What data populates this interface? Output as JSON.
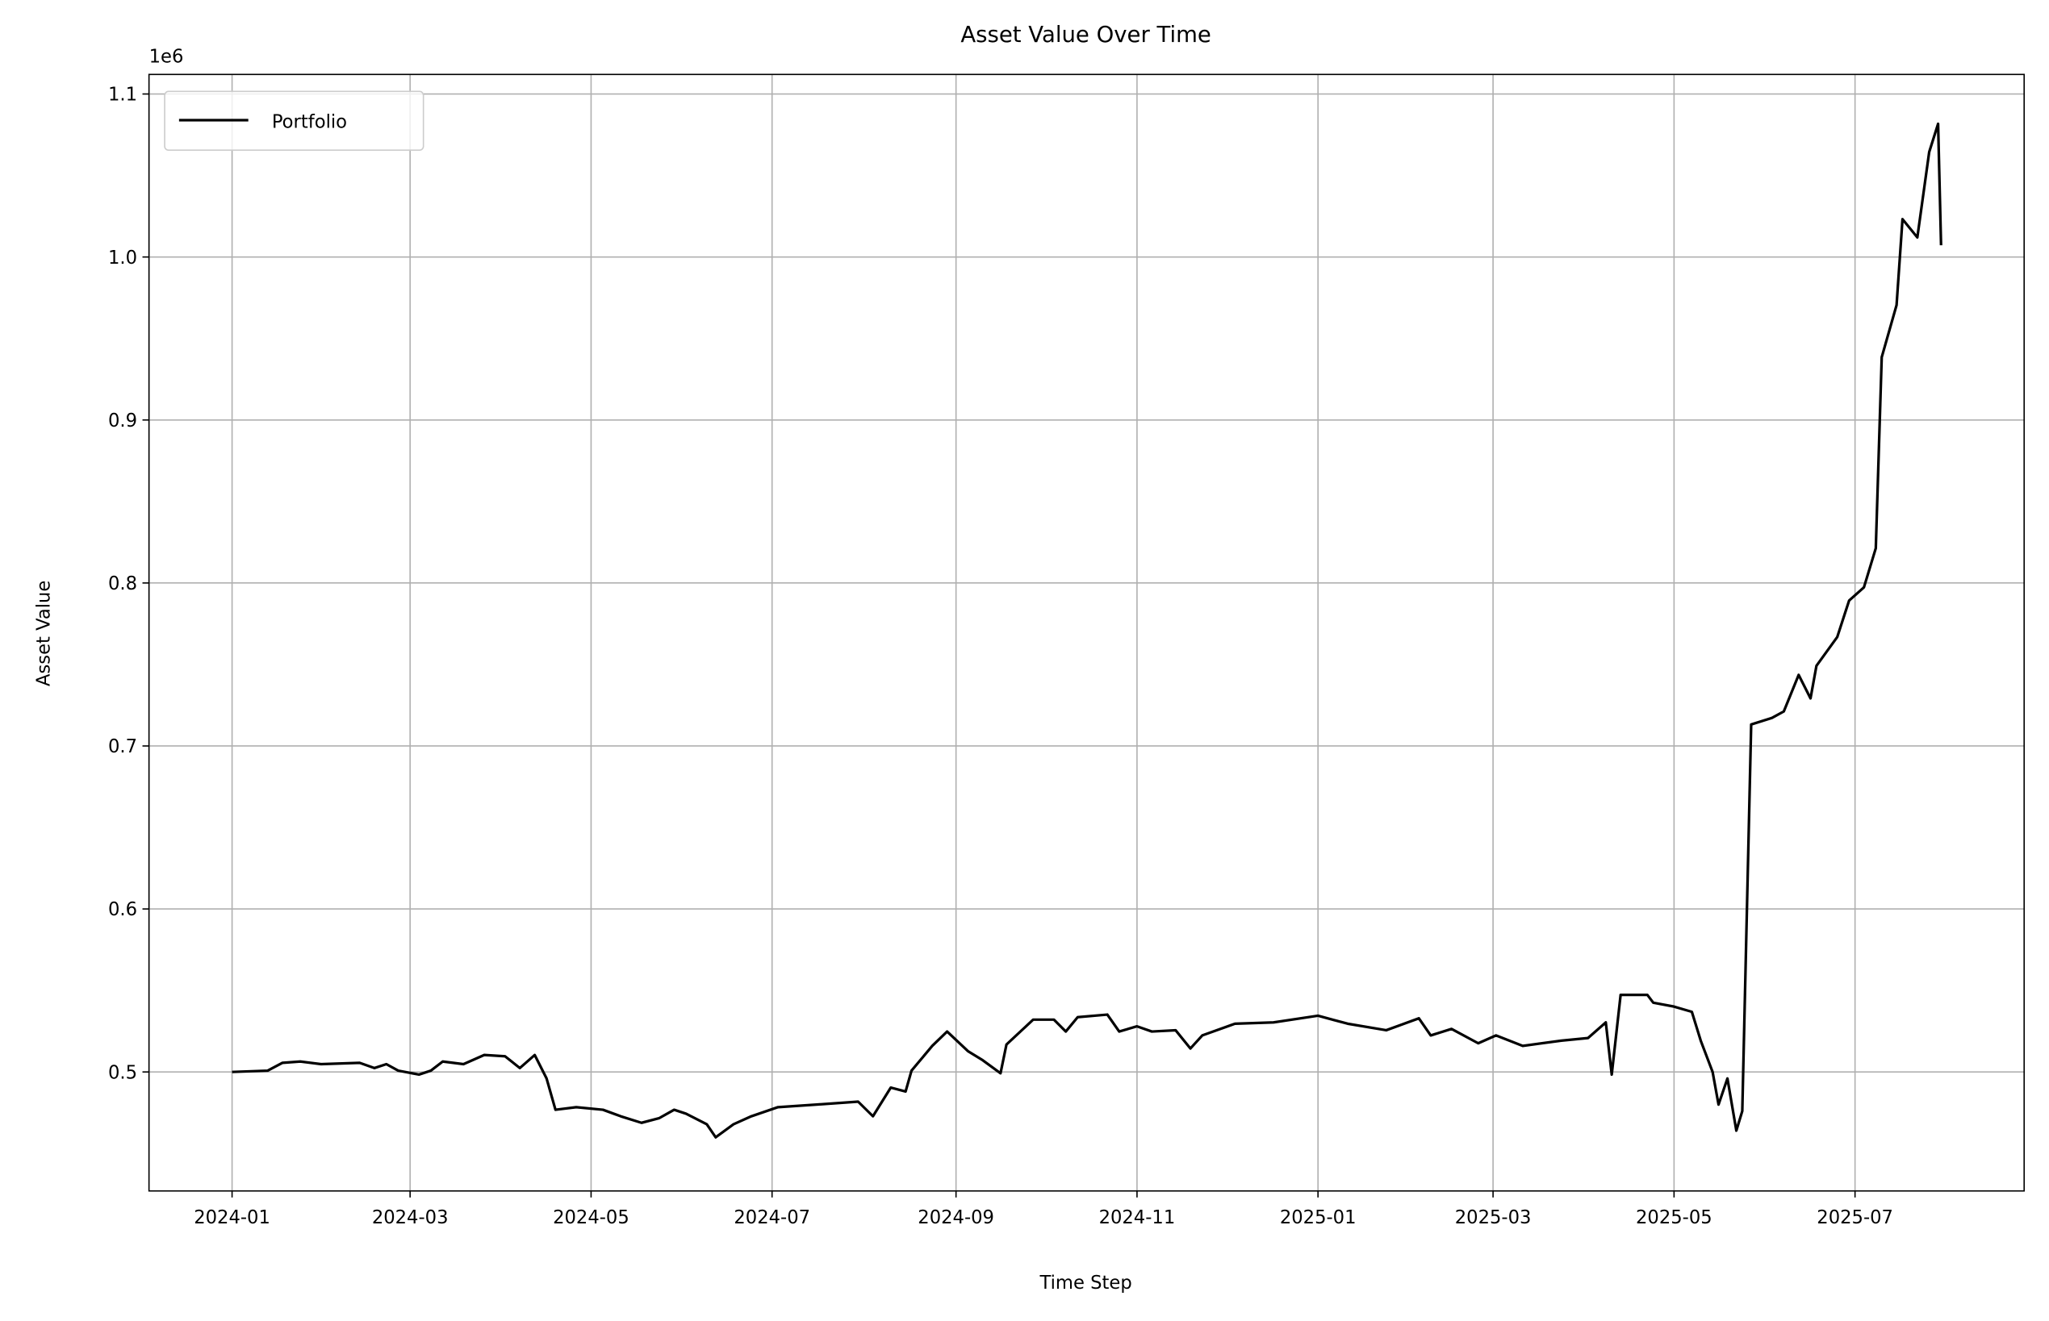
{
  "chart_data": {
    "type": "line",
    "title": "Asset Value Over Time",
    "x_label": "Time Step",
    "y_label": "Asset Value",
    "y_offset_label": "1e6",
    "xlim": [
      "2023-12-04",
      "2025-08-27"
    ],
    "xticks": [
      "2024-01",
      "2024-03",
      "2024-05",
      "2024-07",
      "2024-09",
      "2024-11",
      "2025-01",
      "2025-03",
      "2025-05",
      "2025-07"
    ],
    "ylim": [
      427000,
      1112000
    ],
    "yticks": [
      {
        "value": 500000,
        "label": "0.5"
      },
      {
        "value": 600000,
        "label": "0.6"
      },
      {
        "value": 700000,
        "label": "0.7"
      },
      {
        "value": 800000,
        "label": "0.8"
      },
      {
        "value": 900000,
        "label": "0.9"
      },
      {
        "value": 1000000,
        "label": "1.0"
      },
      {
        "value": 1100000,
        "label": "1.1"
      }
    ],
    "grid": true,
    "legend_position": "upper left",
    "x": [
      "2024-01-01",
      "2024-01-13",
      "2024-01-18",
      "2024-01-24",
      "2024-01-31",
      "2024-02-13",
      "2024-02-18",
      "2024-02-22",
      "2024-02-26",
      "2024-03-04",
      "2024-03-08",
      "2024-03-12",
      "2024-03-19",
      "2024-03-26",
      "2024-04-02",
      "2024-04-07",
      "2024-04-12",
      "2024-04-16",
      "2024-04-19",
      "2024-04-26",
      "2024-05-05",
      "2024-05-11",
      "2024-05-18",
      "2024-05-24",
      "2024-05-29",
      "2024-06-02",
      "2024-06-09",
      "2024-06-12",
      "2024-06-18",
      "2024-06-24",
      "2024-07-03",
      "2024-07-16",
      "2024-07-30",
      "2024-08-04",
      "2024-08-10",
      "2024-08-15",
      "2024-08-17",
      "2024-08-24",
      "2024-08-29",
      "2024-09-05",
      "2024-09-10",
      "2024-09-16",
      "2024-09-18",
      "2024-09-27",
      "2024-10-04",
      "2024-10-08",
      "2024-10-12",
      "2024-10-22",
      "2024-10-26",
      "2024-11-01",
      "2024-11-06",
      "2024-11-14",
      "2024-11-19",
      "2024-11-23",
      "2024-12-04",
      "2024-12-17",
      "2025-01-01",
      "2025-01-11",
      "2025-01-24",
      "2025-02-04",
      "2025-02-08",
      "2025-02-15",
      "2025-02-24",
      "2025-03-02",
      "2025-03-11",
      "2025-03-24",
      "2025-04-02",
      "2025-04-08",
      "2025-04-10",
      "2025-04-13",
      "2025-04-22",
      "2025-04-24",
      "2025-05-01",
      "2025-05-07",
      "2025-05-10",
      "2025-05-14",
      "2025-05-16",
      "2025-05-19",
      "2025-05-22",
      "2025-05-24",
      "2025-05-27",
      "2025-06-03",
      "2025-06-07",
      "2025-06-12",
      "2025-06-16",
      "2025-06-18",
      "2025-06-25",
      "2025-06-29",
      "2025-07-04",
      "2025-07-08",
      "2025-07-10",
      "2025-07-15",
      "2025-07-17",
      "2025-07-22",
      "2025-07-26",
      "2025-07-29",
      "2025-07-30"
    ],
    "series": [
      {
        "name": "Portfolio",
        "color": "#000000",
        "values": [
          500000,
          500800,
          505600,
          506400,
          504800,
          505600,
          502400,
          504800,
          500800,
          498400,
          500800,
          506400,
          504800,
          510400,
          509600,
          502400,
          510400,
          496000,
          476800,
          478400,
          476800,
          472800,
          468800,
          471700,
          476800,
          474400,
          467900,
          459900,
          467900,
          472800,
          478400,
          480000,
          481800,
          472800,
          490400,
          488000,
          500800,
          516000,
          524800,
          512800,
          507200,
          499200,
          516800,
          532100,
          532100,
          524800,
          533600,
          535200,
          524800,
          528000,
          524800,
          525600,
          514400,
          522400,
          529600,
          530400,
          534500,
          529600,
          525600,
          532900,
          522400,
          526400,
          517600,
          522400,
          516000,
          519200,
          520800,
          530400,
          498400,
          547300,
          547300,
          542500,
          540100,
          536900,
          519200,
          500000,
          480000,
          496000,
          464000,
          476000,
          713200,
          717200,
          721200,
          743600,
          729200,
          749200,
          766800,
          789200,
          797300,
          821300,
          938500,
          970500,
          1023200,
          1012000,
          1064400,
          1081700,
          1007200
        ]
      }
    ]
  }
}
